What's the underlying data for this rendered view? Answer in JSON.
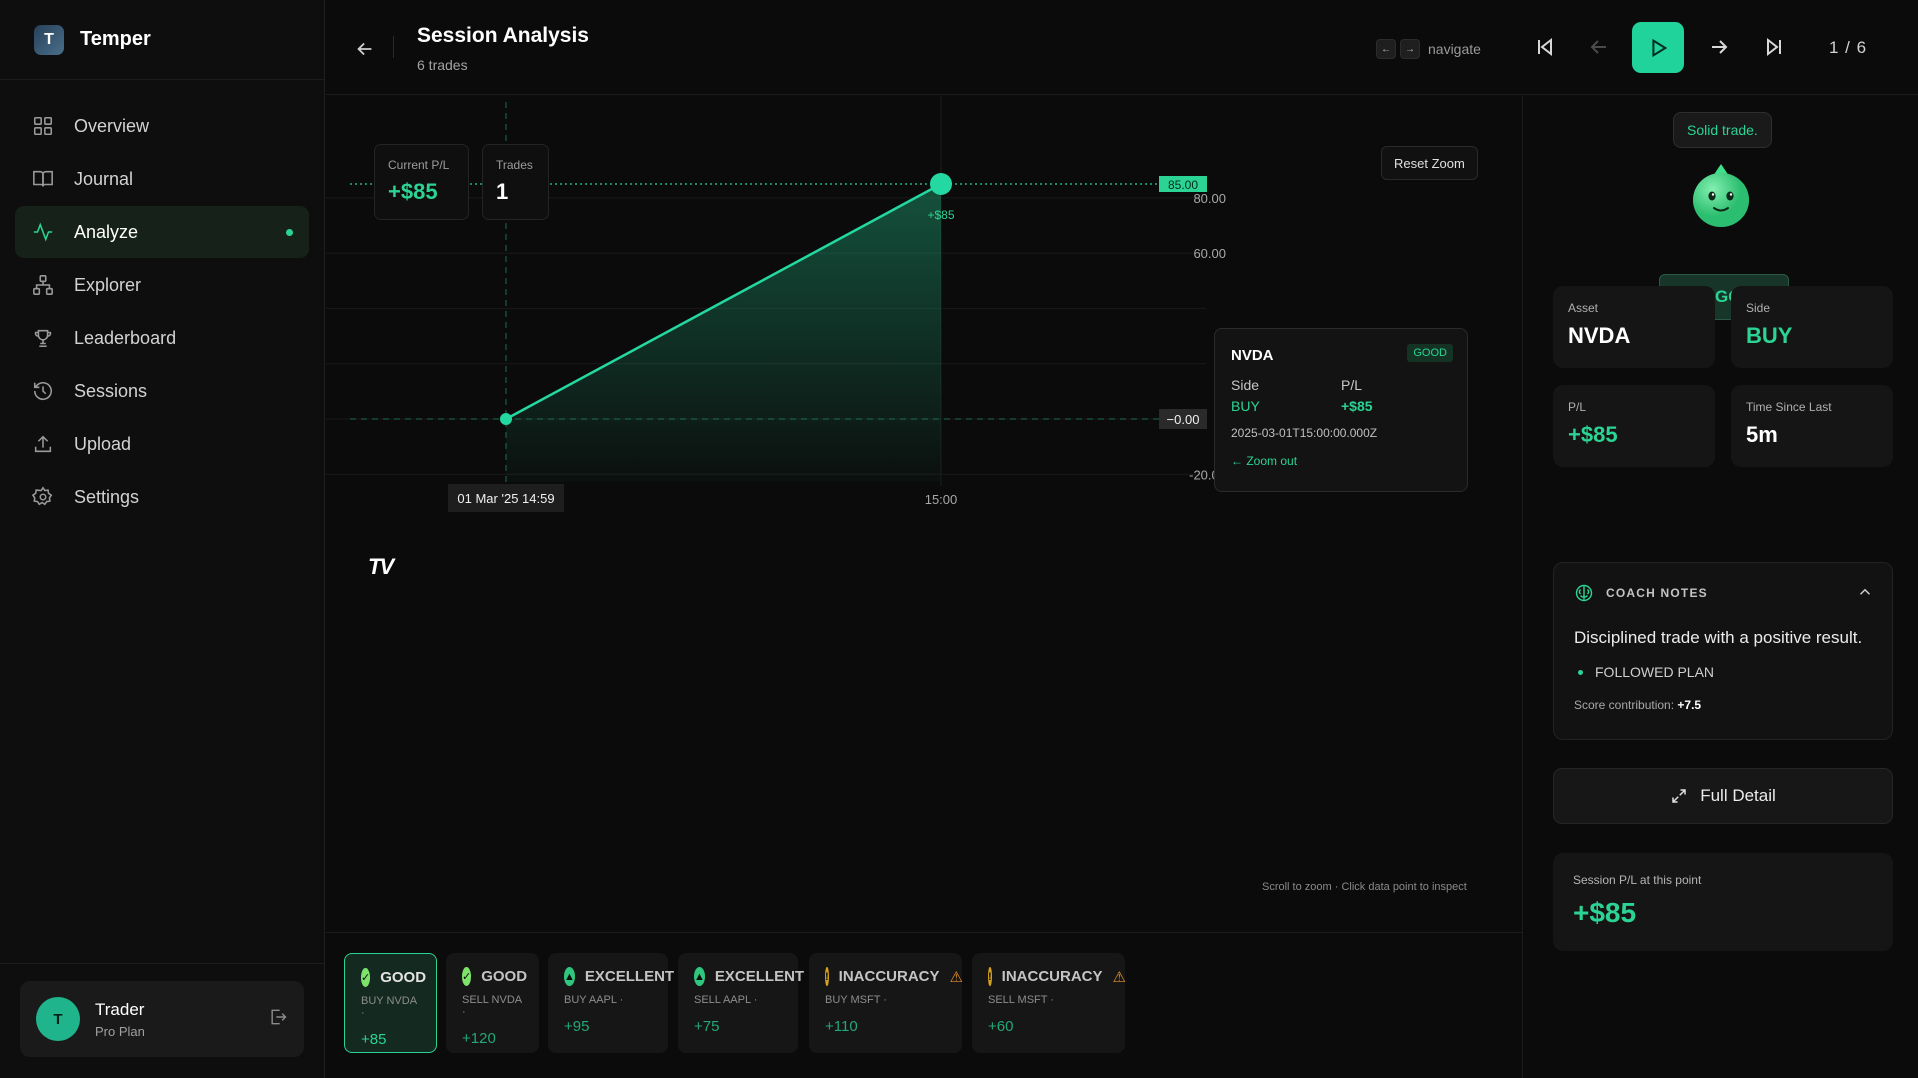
{
  "app": {
    "name": "Temper",
    "logo_text": "T"
  },
  "sidebar": {
    "items": [
      {
        "label": "Overview",
        "icon": "grid-icon"
      },
      {
        "label": "Journal",
        "icon": "book-icon"
      },
      {
        "label": "Analyze",
        "icon": "activity-icon",
        "active": true
      },
      {
        "label": "Explorer",
        "icon": "network-icon"
      },
      {
        "label": "Leaderboard",
        "icon": "trophy-icon"
      },
      {
        "label": "Sessions",
        "icon": "history-icon"
      },
      {
        "label": "Upload",
        "icon": "upload-icon"
      },
      {
        "label": "Settings",
        "icon": "gear-icon"
      }
    ],
    "user": {
      "initial": "T",
      "name": "Trader",
      "plan": "Pro Plan"
    }
  },
  "header": {
    "title": "Session Analysis",
    "subtitle": "6 trades",
    "hint_left_key": "←",
    "hint_right_key": "→",
    "hint_text": "navigate",
    "counter": "1 / 6"
  },
  "chart": {
    "stats": {
      "current_pl_label": "Current P/L",
      "current_pl_value": "+$85",
      "trades_label": "Trades",
      "trades_value": "1"
    },
    "reset_zoom_label": "Reset Zoom",
    "scroll_hint": "Scroll to zoom · Click data point to inspect",
    "crosshair_time_label": "01 Mar '25   14:59",
    "tv_logo": "TV"
  },
  "chart_data": {
    "type": "line",
    "x": [
      "14:59",
      "15:00"
    ],
    "series": [
      {
        "values": [
          0,
          85
        ]
      }
    ],
    "point_labels": [
      "",
      "+$85"
    ],
    "x_tick_labels": [
      "15:00"
    ],
    "y_tick_labels": [
      "80.00",
      "60.00",
      "-20.00"
    ],
    "y_markers": [
      {
        "value": 85,
        "label": "85.00"
      },
      {
        "value": 0,
        "label": "−0.00"
      }
    ],
    "ylim": [
      -20,
      90
    ],
    "grid": true
  },
  "tooltip": {
    "asset": "NVDA",
    "badge": "GOOD",
    "side_label": "Side",
    "side_value": "BUY",
    "pl_label": "P/L",
    "pl_value": "+$85",
    "timestamp": "2025-03-01T15:00:00.000Z",
    "zoom_out": "← Zoom out"
  },
  "trades": [
    {
      "grade": "GOOD",
      "desc": "BUY NVDA ·",
      "pl": "+85",
      "color": "#7de36a",
      "icon": "check-icon",
      "selected": true
    },
    {
      "grade": "GOOD",
      "desc": "SELL NVDA ·",
      "pl": "+120",
      "color": "#7de36a",
      "icon": "check-icon"
    },
    {
      "grade": "EXCELLENT",
      "desc": "BUY AAPL ·",
      "pl": "+95",
      "color": "#2fc77d",
      "icon": "thumbs-up-icon"
    },
    {
      "grade": "EXCELLENT",
      "desc": "SELL AAPL ·",
      "pl": "+75",
      "color": "#2fc77d",
      "icon": "thumbs-up-icon"
    },
    {
      "grade": "INACCURACY",
      "desc": "BUY MSFT ·",
      "pl": "+110",
      "color": "#d6a21c",
      "icon": "exclaim-icon",
      "warn": true
    },
    {
      "grade": "INACCURACY",
      "desc": "SELL MSFT ·",
      "pl": "+60",
      "color": "#d6a21c",
      "icon": "exclaim-icon",
      "warn": true
    }
  ],
  "right_panel": {
    "speech": "Solid trade.",
    "grade": "GOOD",
    "asset_label": "Asset",
    "asset_value": "NVDA",
    "side_label": "Side",
    "side_value": "BUY",
    "pl_label": "P/L",
    "pl_value": "+$85",
    "time_label": "Time Since Last",
    "time_value": "5m",
    "notes_title": "COACH NOTES",
    "notes_text": "Disciplined trade with a positive result.",
    "notes_tag": "FOLLOWED PLAN",
    "score_label": "Score contribution:",
    "score_value": "+7.5",
    "detail_button": "Full Detail",
    "session_pl_label": "Session P/L at this point",
    "session_pl_value": "+$85"
  },
  "colors": {
    "accent": "#2bd494",
    "background": "#0b0b0b",
    "warning": "#e8922a"
  }
}
